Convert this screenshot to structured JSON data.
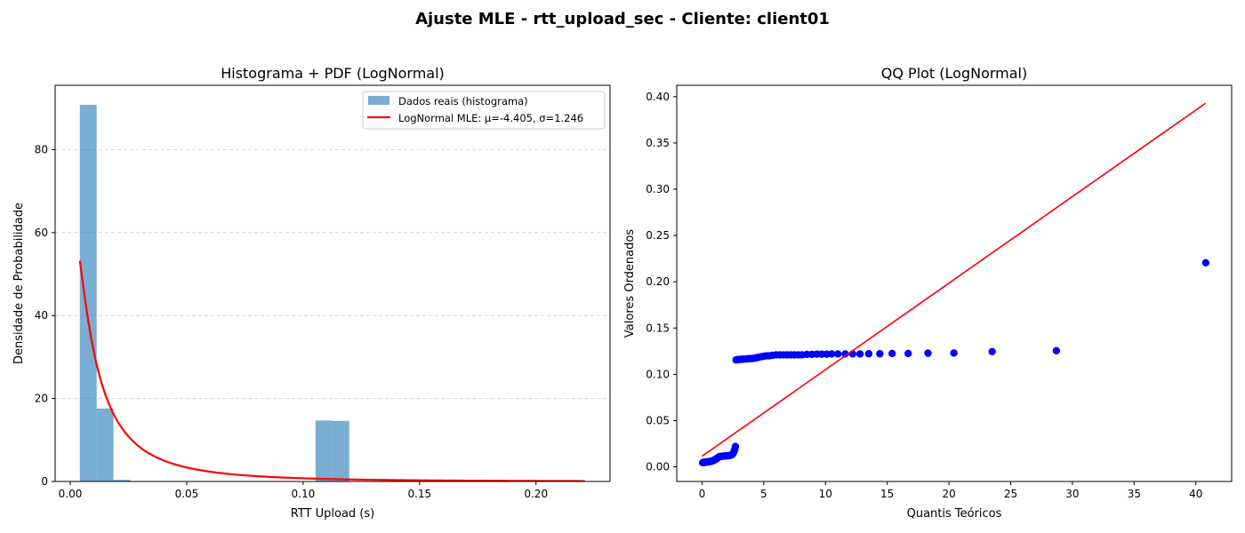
{
  "figure": {
    "suptitle": "Ajuste MLE - rtt_upload_sec - Cliente: client01"
  },
  "chart_data": [
    {
      "type": "bar",
      "title": "Histograma + PDF (LogNormal)",
      "xlabel": "RTT Upload (s)",
      "ylabel": "Densidade de Probabilidade",
      "xlim": [
        -0.0065,
        0.2318
      ],
      "ylim": [
        0,
        95.5
      ],
      "xticks": [
        0.0,
        0.05,
        0.1,
        0.15,
        0.2
      ],
      "xtick_labels": [
        "0.00",
        "0.05",
        "0.10",
        "0.15",
        "0.20"
      ],
      "yticks": [
        0,
        20,
        40,
        60,
        80
      ],
      "ytick_labels": [
        "0",
        "20",
        "40",
        "60",
        "80"
      ],
      "grid": "y-dashed",
      "legend_position": "top-right",
      "legend": [
        {
          "label": "Dados reais (histograma)",
          "kind": "patch",
          "color": "#1f77b4",
          "alpha": 0.6
        },
        {
          "label": "LogNormal MLE: μ=-4.405, σ=1.246",
          "kind": "line",
          "color": "#ff0000"
        }
      ],
      "histogram": {
        "name": "Dados reais (histograma)",
        "color": "#1f77b4",
        "alpha": 0.6,
        "bin_start": 0.0041,
        "bin_width": 0.00723,
        "densities": [
          90.8,
          17.6,
          0.4,
          0,
          0,
          0,
          0,
          0,
          0,
          0,
          0,
          0,
          0,
          0,
          14.7,
          14.6,
          0,
          0,
          0,
          0,
          0,
          0,
          0,
          0,
          0,
          0,
          0,
          0,
          0,
          0
        ]
      },
      "pdf_curve": {
        "name": "LogNormal MLE: μ=-4.405, σ=1.246",
        "color": "#ff0000",
        "distribution": "lognormal",
        "mu": -4.405,
        "sigma": 1.246,
        "x_range": [
          0.0041,
          0.221
        ]
      }
    },
    {
      "type": "scatter",
      "title": "QQ Plot (LogNormal)",
      "xlabel": "Quantis Teóricos",
      "ylabel": "Valores Ordenados",
      "xlim": [
        -2.05,
        42.9
      ],
      "ylim": [
        -0.0158,
        0.4123
      ],
      "xticks": [
        0,
        5,
        10,
        15,
        20,
        25,
        30,
        35,
        40
      ],
      "xtick_labels": [
        "0",
        "5",
        "10",
        "15",
        "20",
        "25",
        "30",
        "35",
        "40"
      ],
      "yticks": [
        0.0,
        0.05,
        0.1,
        0.15,
        0.2,
        0.25,
        0.3,
        0.35,
        0.4
      ],
      "ytick_labels": [
        "0.00",
        "0.05",
        "0.10",
        "0.15",
        "0.20",
        "0.25",
        "0.30",
        "0.35",
        "0.40"
      ],
      "grid": "off",
      "points_color": "#0000ff",
      "points": [
        [
          0.05,
          0.0045
        ],
        [
          0.1,
          0.0045
        ],
        [
          0.15,
          0.005
        ],
        [
          0.2,
          0.0048
        ],
        [
          0.25,
          0.005
        ],
        [
          0.3,
          0.0052
        ],
        [
          0.35,
          0.005
        ],
        [
          0.4,
          0.0055
        ],
        [
          0.45,
          0.0052
        ],
        [
          0.5,
          0.0055
        ],
        [
          0.55,
          0.0055
        ],
        [
          0.6,
          0.0058
        ],
        [
          0.65,
          0.006
        ],
        [
          0.7,
          0.0058
        ],
        [
          0.75,
          0.006
        ],
        [
          0.8,
          0.0062
        ],
        [
          0.85,
          0.0065
        ],
        [
          0.9,
          0.0068
        ],
        [
          0.95,
          0.007
        ],
        [
          1.0,
          0.0075
        ],
        [
          1.05,
          0.0078
        ],
        [
          1.1,
          0.008
        ],
        [
          1.15,
          0.0085
        ],
        [
          1.2,
          0.009
        ],
        [
          1.25,
          0.0095
        ],
        [
          1.3,
          0.01
        ],
        [
          1.35,
          0.0105
        ],
        [
          1.4,
          0.011
        ],
        [
          1.5,
          0.0112
        ],
        [
          1.6,
          0.0115
        ],
        [
          1.7,
          0.0115
        ],
        [
          1.8,
          0.0117
        ],
        [
          1.9,
          0.0118
        ],
        [
          2.0,
          0.012
        ],
        [
          2.1,
          0.012
        ],
        [
          2.2,
          0.0122
        ],
        [
          2.3,
          0.0125
        ],
        [
          2.4,
          0.013
        ],
        [
          2.5,
          0.014
        ],
        [
          2.55,
          0.0155
        ],
        [
          2.6,
          0.017
        ],
        [
          2.65,
          0.019
        ],
        [
          2.7,
          0.022
        ],
        [
          2.75,
          0.1155
        ],
        [
          2.85,
          0.1158
        ],
        [
          2.95,
          0.116
        ],
        [
          3.05,
          0.116
        ],
        [
          3.15,
          0.1162
        ],
        [
          3.25,
          0.1162
        ],
        [
          3.4,
          0.1165
        ],
        [
          3.55,
          0.1165
        ],
        [
          3.7,
          0.1168
        ],
        [
          3.85,
          0.117
        ],
        [
          4.0,
          0.117
        ],
        [
          4.15,
          0.1172
        ],
        [
          4.3,
          0.1175
        ],
        [
          4.45,
          0.118
        ],
        [
          4.6,
          0.1185
        ],
        [
          4.8,
          0.119
        ],
        [
          5.0,
          0.1195
        ],
        [
          5.2,
          0.12
        ],
        [
          5.45,
          0.12
        ],
        [
          5.7,
          0.1205
        ],
        [
          6.0,
          0.121
        ],
        [
          6.3,
          0.121
        ],
        [
          6.6,
          0.121
        ],
        [
          6.9,
          0.121
        ],
        [
          7.2,
          0.121
        ],
        [
          7.5,
          0.121
        ],
        [
          7.8,
          0.121
        ],
        [
          8.1,
          0.121
        ],
        [
          8.5,
          0.1215
        ],
        [
          8.9,
          0.1215
        ],
        [
          9.3,
          0.1218
        ],
        [
          9.7,
          0.1218
        ],
        [
          10.1,
          0.1218
        ],
        [
          10.5,
          0.122
        ],
        [
          11.0,
          0.122
        ],
        [
          11.6,
          0.122
        ],
        [
          12.2,
          0.122
        ],
        [
          12.8,
          0.122
        ],
        [
          13.5,
          0.1222
        ],
        [
          14.4,
          0.1222
        ],
        [
          15.4,
          0.1225
        ],
        [
          16.7,
          0.1225
        ],
        [
          18.3,
          0.1228
        ],
        [
          20.4,
          0.123
        ],
        [
          23.5,
          0.1245
        ],
        [
          28.7,
          0.1255
        ],
        [
          40.8,
          0.2205
        ]
      ],
      "reference_line": {
        "color": "#ff0000",
        "from": [
          0,
          0.0115
        ],
        "to": [
          40.8,
          0.393
        ]
      }
    }
  ]
}
